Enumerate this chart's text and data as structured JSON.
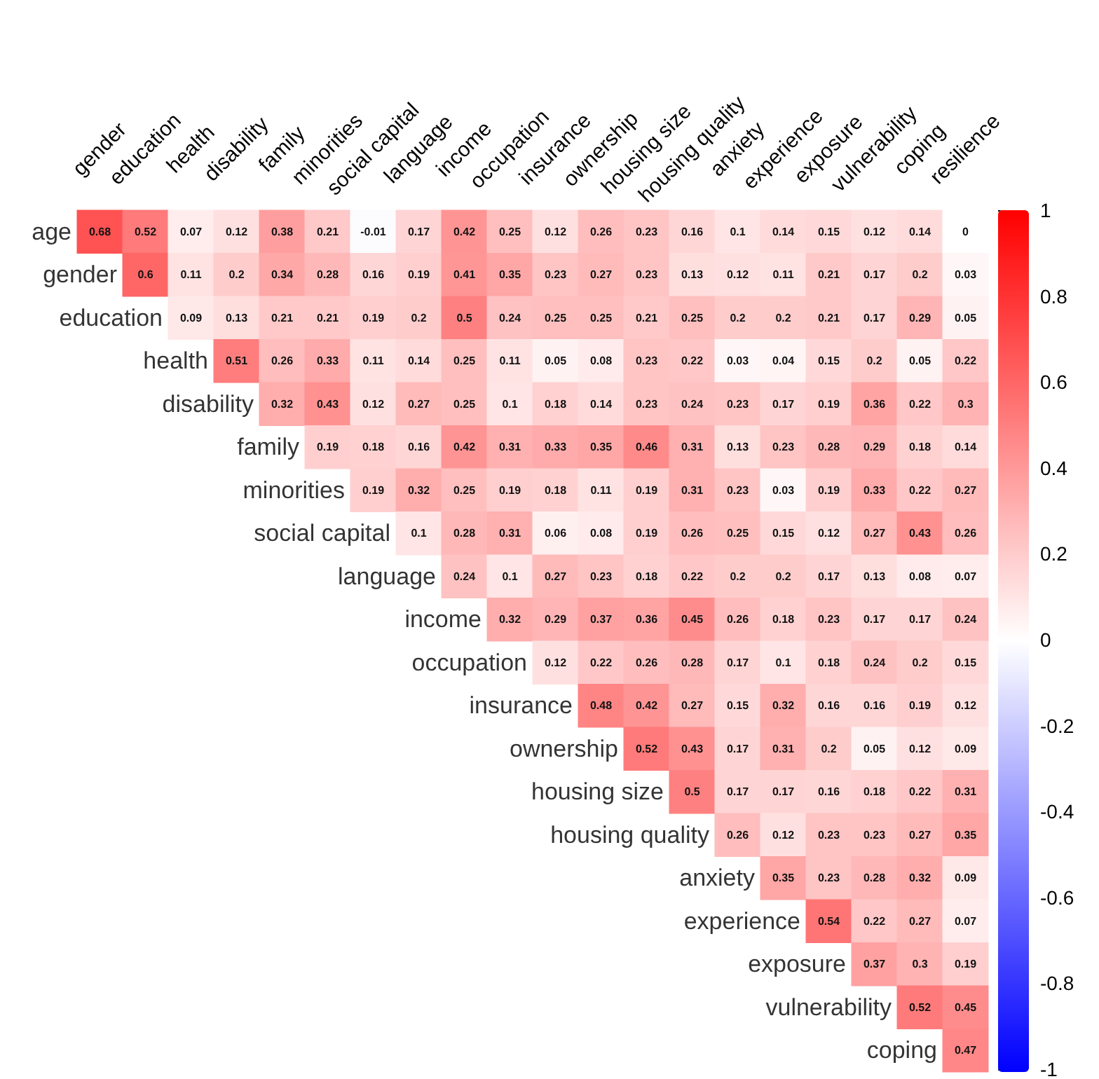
{
  "chart_data": {
    "type": "heatmap",
    "data_labels": true,
    "categories": [
      "gender",
      "education",
      "health",
      "disability",
      "family",
      "minorities",
      "social capital",
      "language",
      "income",
      "occupation",
      "insurance",
      "ownership",
      "housing size",
      "housing quality",
      "anxiety",
      "experience",
      "exposure",
      "vulnerability",
      "coping",
      "resilience"
    ],
    "y_categories": [
      "age",
      "gender",
      "education",
      "health",
      "disability",
      "family",
      "minorities",
      "social capital",
      "language",
      "income",
      "occupation",
      "insurance",
      "ownership",
      "housing size",
      "housing quality",
      "anxiety",
      "experience",
      "exposure",
      "vulnerability",
      "coping"
    ],
    "clim": [
      -1,
      1
    ],
    "cticks": [
      -1,
      -0.8,
      -0.6,
      -0.4,
      -0.2,
      0,
      0.2,
      0.4,
      0.6,
      0.8,
      1
    ],
    "colors": [
      "#0000ff",
      "#ffffff",
      "#ff0000"
    ],
    "cells": [
      [
        0.68,
        0.52,
        0.07,
        0.12,
        0.38,
        0.21,
        -0.01,
        0.17,
        0.42,
        0.25,
        0.12,
        0.26,
        0.23,
        0.16,
        0.1,
        0.14,
        0.15,
        0.12,
        0.14,
        0
      ],
      [
        null,
        0.6,
        0.11,
        0.2,
        0.34,
        0.28,
        0.16,
        0.19,
        0.41,
        0.35,
        0.23,
        0.27,
        0.23,
        0.13,
        0.12,
        0.11,
        0.21,
        0.17,
        0.2,
        0.03
      ],
      [
        null,
        null,
        0.09,
        0.13,
        0.21,
        0.21,
        0.19,
        0.2,
        0.5,
        0.24,
        0.25,
        0.25,
        0.21,
        0.25,
        0.2,
        0.2,
        0.21,
        0.17,
        0.29,
        0.05
      ],
      [
        null,
        null,
        null,
        0.51,
        0.26,
        0.33,
        0.11,
        0.14,
        0.25,
        0.11,
        0.05,
        0.08,
        0.23,
        0.22,
        0.03,
        0.04,
        0.15,
        0.2,
        0.05,
        0.22
      ],
      [
        null,
        null,
        null,
        null,
        0.32,
        0.43,
        0.12,
        0.27,
        0.25,
        0.1,
        0.18,
        0.14,
        0.23,
        0.24,
        0.23,
        0.17,
        0.19,
        0.36,
        0.22,
        0.3
      ],
      [
        null,
        null,
        null,
        null,
        null,
        0.19,
        0.18,
        0.16,
        0.42,
        0.31,
        0.33,
        0.35,
        0.46,
        0.31,
        0.13,
        0.23,
        0.28,
        0.29,
        0.18,
        0.14
      ],
      [
        null,
        null,
        null,
        null,
        null,
        null,
        0.19,
        0.32,
        0.25,
        0.19,
        0.18,
        0.11,
        0.19,
        0.31,
        0.23,
        0.03,
        0.19,
        0.33,
        0.22,
        0.27
      ],
      [
        null,
        null,
        null,
        null,
        null,
        null,
        null,
        0.1,
        0.28,
        0.31,
        0.06,
        0.08,
        0.19,
        0.26,
        0.25,
        0.15,
        0.12,
        0.27,
        0.43,
        0.26
      ],
      [
        null,
        null,
        null,
        null,
        null,
        null,
        null,
        null,
        0.24,
        0.1,
        0.27,
        0.23,
        0.18,
        0.22,
        0.2,
        0.2,
        0.17,
        0.13,
        0.08,
        0.07
      ],
      [
        null,
        null,
        null,
        null,
        null,
        null,
        null,
        null,
        null,
        0.32,
        0.29,
        0.37,
        0.36,
        0.45,
        0.26,
        0.18,
        0.23,
        0.17,
        0.17,
        0.24
      ],
      [
        null,
        null,
        null,
        null,
        null,
        null,
        null,
        null,
        null,
        null,
        0.12,
        0.22,
        0.26,
        0.28,
        0.17,
        0.1,
        0.18,
        0.24,
        0.2,
        0.15
      ],
      [
        null,
        null,
        null,
        null,
        null,
        null,
        null,
        null,
        null,
        null,
        null,
        0.48,
        0.42,
        0.27,
        0.15,
        0.32,
        0.16,
        0.16,
        0.19,
        0.12
      ],
      [
        null,
        null,
        null,
        null,
        null,
        null,
        null,
        null,
        null,
        null,
        null,
        null,
        0.52,
        0.43,
        0.17,
        0.31,
        0.2,
        0.05,
        0.12,
        0.09
      ],
      [
        null,
        null,
        null,
        null,
        null,
        null,
        null,
        null,
        null,
        null,
        null,
        null,
        null,
        0.5,
        0.17,
        0.17,
        0.16,
        0.18,
        0.22,
        0.31
      ],
      [
        null,
        null,
        null,
        null,
        null,
        null,
        null,
        null,
        null,
        null,
        null,
        null,
        null,
        null,
        0.26,
        0.12,
        0.23,
        0.23,
        0.27,
        0.35
      ],
      [
        null,
        null,
        null,
        null,
        null,
        null,
        null,
        null,
        null,
        null,
        null,
        null,
        null,
        null,
        null,
        0.35,
        0.23,
        0.28,
        0.32,
        0.09
      ],
      [
        null,
        null,
        null,
        null,
        null,
        null,
        null,
        null,
        null,
        null,
        null,
        null,
        null,
        null,
        null,
        null,
        0.54,
        0.22,
        0.27,
        0.07
      ],
      [
        null,
        null,
        null,
        null,
        null,
        null,
        null,
        null,
        null,
        null,
        null,
        null,
        null,
        null,
        null,
        null,
        null,
        0.37,
        0.3,
        0.19
      ],
      [
        null,
        null,
        null,
        null,
        null,
        null,
        null,
        null,
        null,
        null,
        null,
        null,
        null,
        null,
        null,
        null,
        null,
        null,
        0.52,
        0.45
      ],
      [
        null,
        null,
        null,
        null,
        null,
        null,
        null,
        null,
        null,
        null,
        null,
        null,
        null,
        null,
        null,
        null,
        null,
        null,
        null,
        0.47
      ]
    ]
  }
}
